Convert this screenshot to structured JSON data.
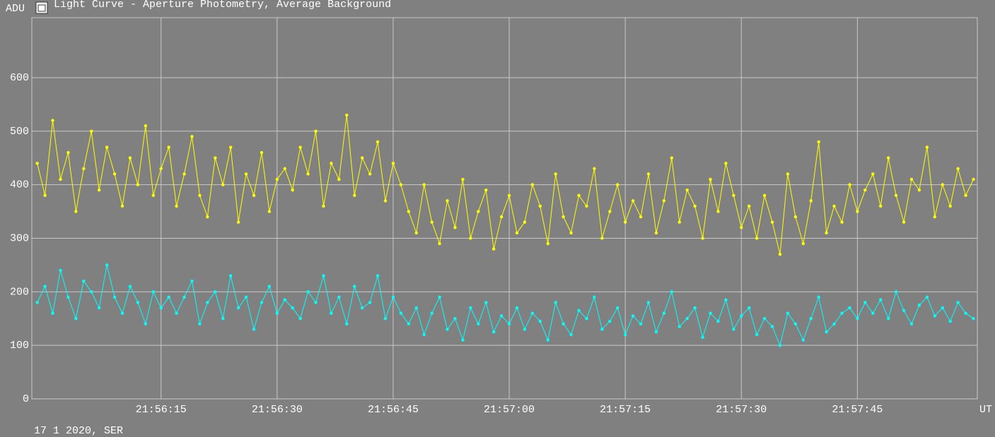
{
  "chart_data": {
    "type": "line",
    "title": "Light Curve - Aperture Photometry, Average Background",
    "y_label": "ADU",
    "x_label": "UT",
    "footer": "17 1 2020, SER",
    "xlim": [
      78958.3,
      79080.5
    ],
    "xticks": [
      {
        "value": 78975,
        "label": "21:56:15"
      },
      {
        "value": 78990,
        "label": "21:56:30"
      },
      {
        "value": 79005,
        "label": "21:56:45"
      },
      {
        "value": 79020,
        "label": "21:57:00"
      },
      {
        "value": 79035,
        "label": "21:57:15"
      },
      {
        "value": 79050,
        "label": "21:57:30"
      },
      {
        "value": 79065,
        "label": "21:57:45"
      }
    ],
    "ylim": [
      0,
      712
    ],
    "yticks": [
      0,
      100,
      200,
      300,
      400,
      500,
      600
    ],
    "grid": true,
    "x": [
      78959,
      78960,
      78961,
      78962,
      78963,
      78964,
      78965,
      78966,
      78967,
      78968,
      78969,
      78970,
      78971,
      78972,
      78973,
      78974,
      78975,
      78976,
      78977,
      78978,
      78979,
      78980,
      78981,
      78982,
      78983,
      78984,
      78985,
      78986,
      78987,
      78988,
      78989,
      78990,
      78991,
      78992,
      78993,
      78994,
      78995,
      78996,
      78997,
      78998,
      78999,
      79000,
      79001,
      79002,
      79003,
      79004,
      79005,
      79006,
      79007,
      79008,
      79009,
      79010,
      79011,
      79012,
      79013,
      79014,
      79015,
      79016,
      79017,
      79018,
      79019,
      79020,
      79021,
      79022,
      79023,
      79024,
      79025,
      79026,
      79027,
      79028,
      79029,
      79030,
      79031,
      79032,
      79033,
      79034,
      79035,
      79036,
      79037,
      79038,
      79039,
      79040,
      79041,
      79042,
      79043,
      79044,
      79045,
      79046,
      79047,
      79048,
      79049,
      79050,
      79051,
      79052,
      79053,
      79054,
      79055,
      79056,
      79057,
      79058,
      79059,
      79060,
      79061,
      79062,
      79063,
      79064,
      79065,
      79066,
      79067,
      79068,
      79069,
      79070,
      79071,
      79072,
      79073,
      79074,
      79075,
      79076,
      79077,
      79078,
      79079,
      79080
    ],
    "series": [
      {
        "color": "#ffff00",
        "values": [
          440,
          380,
          520,
          410,
          460,
          350,
          430,
          500,
          390,
          470,
          420,
          360,
          450,
          400,
          510,
          380,
          430,
          470,
          360,
          420,
          490,
          380,
          340,
          450,
          400,
          470,
          330,
          420,
          380,
          460,
          350,
          410,
          430,
          390,
          470,
          420,
          500,
          360,
          440,
          410,
          530,
          380,
          450,
          420,
          480,
          370,
          440,
          400,
          350,
          310,
          400,
          330,
          290,
          370,
          320,
          410,
          300,
          350,
          390,
          280,
          340,
          380,
          310,
          330,
          400,
          360,
          290,
          420,
          340,
          310,
          380,
          360,
          430,
          300,
          350,
          400,
          330,
          370,
          340,
          420,
          310,
          370,
          450,
          330,
          390,
          360,
          300,
          410,
          350,
          440,
          380,
          320,
          360,
          300,
          380,
          330,
          270,
          420,
          340,
          290,
          370,
          480,
          310,
          360,
          330,
          400,
          350,
          390,
          420,
          360,
          450,
          380,
          330,
          410,
          390,
          470,
          340,
          400,
          360,
          430,
          380,
          410
        ]
      },
      {
        "color": "#00ffff",
        "values": [
          180,
          210,
          160,
          240,
          190,
          150,
          220,
          200,
          170,
          250,
          190,
          160,
          210,
          180,
          140,
          200,
          170,
          190,
          160,
          190,
          220,
          140,
          180,
          200,
          150,
          230,
          170,
          190,
          130,
          180,
          210,
          160,
          185,
          170,
          150,
          200,
          180,
          230,
          160,
          190,
          140,
          210,
          170,
          180,
          230,
          150,
          190,
          160,
          140,
          170,
          120,
          160,
          190,
          130,
          150,
          110,
          170,
          140,
          180,
          125,
          155,
          140,
          170,
          130,
          160,
          145,
          110,
          180,
          140,
          120,
          165,
          150,
          190,
          130,
          145,
          170,
          120,
          155,
          140,
          180,
          125,
          160,
          200,
          135,
          150,
          170,
          115,
          160,
          145,
          185,
          130,
          155,
          170,
          120,
          150,
          135,
          100,
          160,
          140,
          110,
          150,
          190,
          125,
          140,
          160,
          170,
          150,
          180,
          160,
          185,
          150,
          200,
          165,
          140,
          175,
          190,
          155,
          170,
          145,
          180,
          160,
          150
        ]
      }
    ]
  }
}
